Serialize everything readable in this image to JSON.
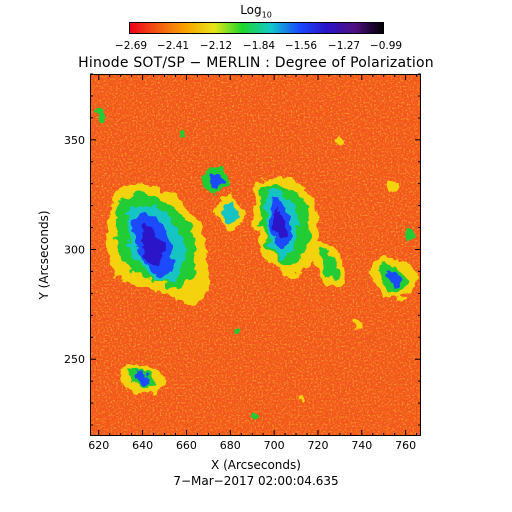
{
  "colorbar": {
    "title": "Log",
    "title_sub": "10",
    "tick_labels": [
      "−2.69",
      "−2.41",
      "−2.12",
      "−1.84",
      "−1.56",
      "−1.27",
      "−0.99"
    ],
    "gradient_colors": [
      "#f0001c",
      "#f25a10",
      "#f9a400",
      "#e6e61a",
      "#1cd62c",
      "#14c8c8",
      "#1a4cff",
      "#2a14c8",
      "#501080",
      "#000000"
    ]
  },
  "plot": {
    "title": "Hinode SOT/SP − MERLIN : Degree of Polarization",
    "x_axis": {
      "label": "X (Arcseconds)",
      "ticks": [
        "620",
        "640",
        "660",
        "680",
        "700",
        "720",
        "740",
        "760"
      ],
      "range": [
        616,
        767
      ]
    },
    "y_axis": {
      "label": "Y (Arcseconds)",
      "ticks": [
        "250",
        "300",
        "350"
      ],
      "range": [
        215,
        380
      ]
    },
    "timestamp": "7−Mar−2017 02:00:04.635",
    "dominant_color": "#f25a14"
  }
}
